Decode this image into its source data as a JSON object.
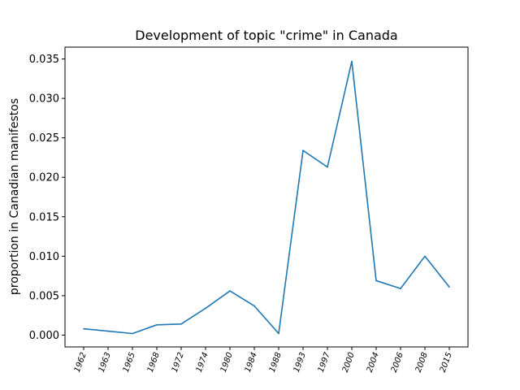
{
  "chart_data": {
    "type": "line",
    "title": "Development of topic \"crime\" in Canada",
    "xlabel": "",
    "ylabel": "proportion in Canadian manifestos",
    "categories": [
      "1962",
      "1963",
      "1965",
      "1968",
      "1972",
      "1974",
      "1980",
      "1984",
      "1988",
      "1993",
      "1997",
      "2000",
      "2004",
      "2006",
      "2008",
      "2015"
    ],
    "series": [
      {
        "color": "#1f77b4",
        "values": [
          0.0008,
          0.0005,
          0.0002,
          0.0013,
          0.0014,
          0.0034,
          0.0056,
          0.0037,
          0.0002,
          0.0234,
          0.0213,
          0.0347,
          0.0069,
          0.0059,
          0.01,
          0.0061
        ]
      }
    ],
    "ylim": [
      -0.0015,
      0.0365
    ],
    "yticks": [
      0.0,
      0.005,
      0.01,
      0.015,
      0.02,
      0.025,
      0.03,
      0.035
    ],
    "ytick_labels": [
      "0.000",
      "0.005",
      "0.010",
      "0.015",
      "0.020",
      "0.025",
      "0.030",
      "0.035"
    ],
    "grid": false
  }
}
